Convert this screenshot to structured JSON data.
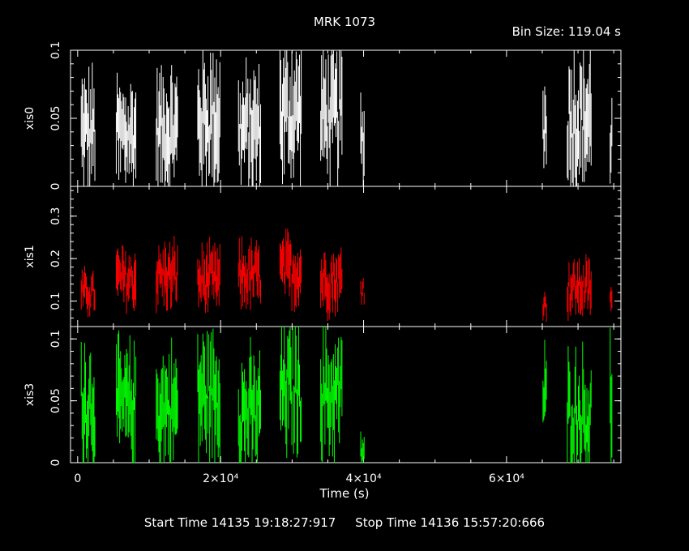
{
  "header": {
    "title": "MRK 1073",
    "bin_size": "Bin Size: 119.04 s"
  },
  "footer": {
    "start_time": "Start Time 14135 19:18:27:917",
    "stop_time": "Stop Time 14136 15:57:20:666"
  },
  "chart_data": {
    "type": "scatter",
    "title": "MRK 1073",
    "xlabel": "Time (s)",
    "xlim": [
      -1000,
      76000
    ],
    "x_ticks": [
      0,
      20000,
      40000,
      60000
    ],
    "x_tick_labels": [
      "0",
      "2×10⁴",
      "4×10⁴",
      "6×10⁴"
    ],
    "panels": [
      {
        "name": "xis0",
        "ylabel": "xis0",
        "ylim": [
          0,
          0.1
        ],
        "y_ticks": [
          0,
          0.05,
          0.1
        ],
        "y_tick_labels": [
          "0",
          "0.05",
          "0.1"
        ],
        "color": "#ffffff",
        "segments": [
          {
            "start": 500,
            "end": 2500,
            "mean": 0.04,
            "spread": 0.025
          },
          {
            "start": 5400,
            "end": 8200,
            "mean": 0.038,
            "spread": 0.025
          },
          {
            "start": 11000,
            "end": 14000,
            "mean": 0.042,
            "spread": 0.025
          },
          {
            "start": 16800,
            "end": 19900,
            "mean": 0.05,
            "spread": 0.03
          },
          {
            "start": 22500,
            "end": 25600,
            "mean": 0.042,
            "spread": 0.025
          },
          {
            "start": 28300,
            "end": 31300,
            "mean": 0.055,
            "spread": 0.03
          },
          {
            "start": 34000,
            "end": 37000,
            "mean": 0.052,
            "spread": 0.028
          },
          {
            "start": 39600,
            "end": 40100,
            "mean": 0.035,
            "spread": 0.02
          },
          {
            "start": 65100,
            "end": 65600,
            "mean": 0.045,
            "spread": 0.025
          },
          {
            "start": 68500,
            "end": 71900,
            "mean": 0.05,
            "spread": 0.03
          },
          {
            "start": 74500,
            "end": 74800,
            "mean": 0.035,
            "spread": 0.02
          }
        ]
      },
      {
        "name": "xis1",
        "ylabel": "xis1",
        "ylim": [
          0.04,
          0.37
        ],
        "y_ticks": [
          0.1,
          0.2,
          0.3
        ],
        "y_tick_labels": [
          "0.1",
          "0.2",
          "0.3"
        ],
        "color": "#ff0000",
        "segments": [
          {
            "start": 500,
            "end": 2500,
            "mean": 0.12,
            "spread": 0.03
          },
          {
            "start": 5400,
            "end": 8200,
            "mean": 0.15,
            "spread": 0.045
          },
          {
            "start": 11000,
            "end": 14000,
            "mean": 0.16,
            "spread": 0.045
          },
          {
            "start": 16800,
            "end": 19900,
            "mean": 0.15,
            "spread": 0.045
          },
          {
            "start": 22500,
            "end": 25600,
            "mean": 0.16,
            "spread": 0.045
          },
          {
            "start": 28300,
            "end": 31300,
            "mean": 0.17,
            "spread": 0.05
          },
          {
            "start": 34000,
            "end": 37000,
            "mean": 0.15,
            "spread": 0.045
          },
          {
            "start": 39600,
            "end": 40100,
            "mean": 0.13,
            "spread": 0.025
          },
          {
            "start": 65100,
            "end": 65600,
            "mean": 0.09,
            "spread": 0.02
          },
          {
            "start": 68500,
            "end": 71900,
            "mean": 0.13,
            "spread": 0.04
          },
          {
            "start": 74500,
            "end": 74800,
            "mean": 0.1,
            "spread": 0.025
          }
        ]
      },
      {
        "name": "xis3",
        "ylabel": "xis3",
        "ylim": [
          0,
          0.11
        ],
        "y_ticks": [
          0,
          0.05,
          0.1
        ],
        "y_tick_labels": [
          "0",
          "0.05",
          "0.1"
        ],
        "color": "#00ff00",
        "segments": [
          {
            "start": 500,
            "end": 2500,
            "mean": 0.05,
            "spread": 0.03
          },
          {
            "start": 5400,
            "end": 8200,
            "mean": 0.045,
            "spread": 0.028
          },
          {
            "start": 11000,
            "end": 14000,
            "mean": 0.045,
            "spread": 0.028
          },
          {
            "start": 16800,
            "end": 19900,
            "mean": 0.055,
            "spread": 0.03
          },
          {
            "start": 22500,
            "end": 25600,
            "mean": 0.04,
            "spread": 0.028
          },
          {
            "start": 28300,
            "end": 31300,
            "mean": 0.06,
            "spread": 0.03
          },
          {
            "start": 34000,
            "end": 37000,
            "mean": 0.055,
            "spread": 0.03
          },
          {
            "start": 39600,
            "end": 40100,
            "mean": 0.01,
            "spread": 0.008
          },
          {
            "start": 65100,
            "end": 65600,
            "mean": 0.05,
            "spread": 0.025
          },
          {
            "start": 68500,
            "end": 71900,
            "mean": 0.04,
            "spread": 0.028
          },
          {
            "start": 74500,
            "end": 74800,
            "mean": 0.05,
            "spread": 0.03
          }
        ]
      }
    ]
  }
}
